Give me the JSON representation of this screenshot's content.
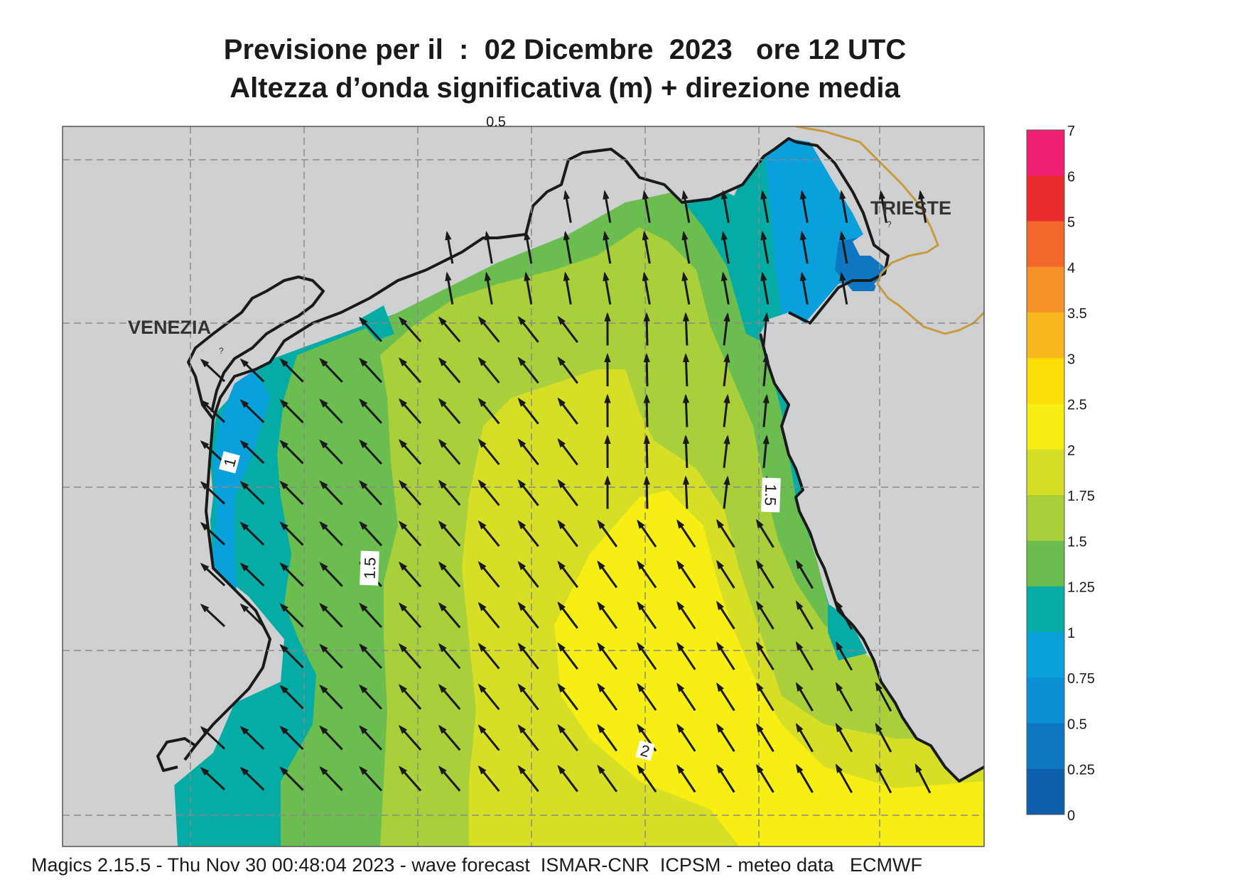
{
  "titles": {
    "line1": "Previsione per il  :  02 Dicembre  2023   ore 12 UTC",
    "line2": "Altezza d’onda significativa (m) + direzione media"
  },
  "places": {
    "venezia": "VENEZIA",
    "trieste": "TRIESTE"
  },
  "contour_labels": {
    "c1": "1",
    "c15a": "1.5",
    "c15b": "1.5",
    "c2": "2",
    "c05": "0.5"
  },
  "colorbar": {
    "labels": [
      "7",
      "6",
      "5",
      "4",
      "3.5",
      "3",
      "2.5",
      "2",
      "1.75",
      "1.5",
      "1.25",
      "1",
      "0.75",
      "0.5",
      "0.25",
      "0"
    ],
    "colors": [
      "#ee1f73",
      "#ea2b2d",
      "#f2682a",
      "#f6922a",
      "#f9b820",
      "#fbdd07",
      "#f7ee13",
      "#d6df26",
      "#a9cf3b",
      "#6cbd4f",
      "#05aca5",
      "#0aa0db",
      "#0b90d6",
      "#0f77c1",
      "#0e5fab"
    ]
  },
  "footer": "Magics 2.15.5 - Thu Nov 30 00:48:04 2023 - wave forecast  ISMAR-CNR  ICPSM - meteo data   ECMWF",
  "colors": {
    "land": "#cfd0d2",
    "coast": "#1a1a1a",
    "border": "#c99a3c",
    "grid": "#8a8a8a",
    "arrow": "#1a1a1a"
  }
}
